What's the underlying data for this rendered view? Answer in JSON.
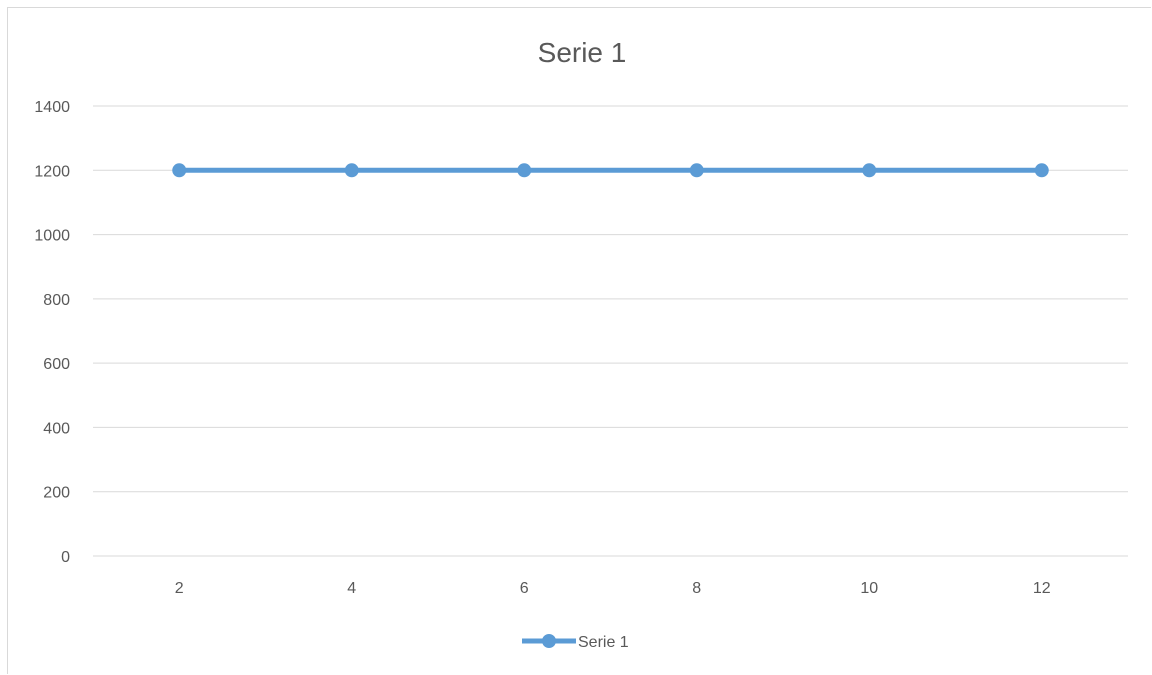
{
  "chart_data": {
    "type": "line",
    "title": "Serie 1",
    "xlabel": "",
    "ylabel": "",
    "categories": [
      "2",
      "4",
      "6",
      "8",
      "10",
      "12"
    ],
    "series": [
      {
        "name": "Serie 1",
        "values": [
          1200,
          1200,
          1200,
          1200,
          1200,
          1200
        ],
        "color": "#5b9bd5"
      }
    ],
    "ylim": [
      0,
      1400
    ],
    "yticks": [
      "0",
      "200",
      "400",
      "600",
      "800",
      "1000",
      "1200",
      "1400"
    ],
    "grid": true,
    "legend_position": "bottom",
    "gridline_color": "#d9d9d9",
    "text_color": "#595959"
  }
}
